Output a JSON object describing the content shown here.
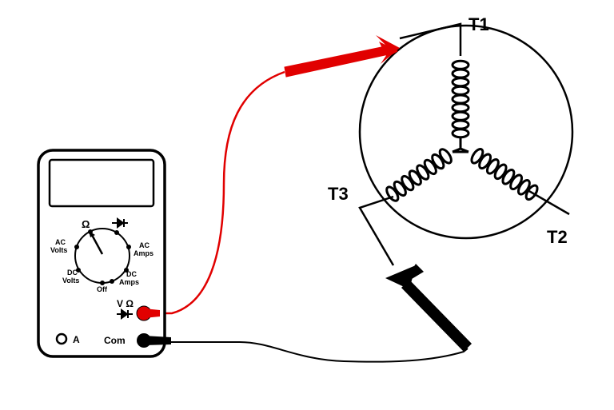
{
  "terminals": {
    "t1": "T1",
    "t2": "T2",
    "t3": "T3"
  },
  "meter": {
    "dial_labels": {
      "ohm": "Ω",
      "ac_volts_1": "AC",
      "ac_volts_2": "Volts",
      "ac_amps_1": "AC",
      "ac_amps_2": "Amps",
      "dc_volts_1": "DC",
      "dc_volts_2": "Volts",
      "dc_amps_1": "DC",
      "dc_amps_2": "Amps",
      "off": "Off"
    },
    "ports": {
      "vohm": "V Ω",
      "amps": "A",
      "com": "Com"
    }
  },
  "colors": {
    "red_lead": "#e10000",
    "black_lead": "#000000",
    "line": "#000000"
  }
}
